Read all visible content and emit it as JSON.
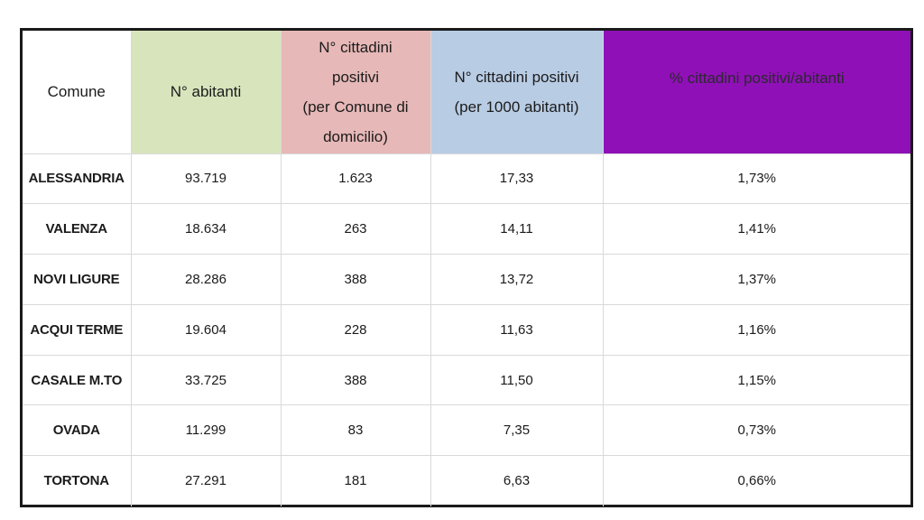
{
  "table": {
    "headers": {
      "comune": "Comune",
      "abitanti": "N° abitanti",
      "positivi": [
        "N° cittadini",
        "positivi",
        "(per Comune di",
        "domicilio)"
      ],
      "per1000": [
        "N° cittadini positivi",
        "(per 1000 abitanti)"
      ],
      "perc": "% cittadini positivi/abitanti"
    },
    "header_colors": {
      "abitanti": "#d8e4bc",
      "positivi": "#e6b8b7",
      "per1000": "#b8cce4",
      "perc": "#9010b8"
    },
    "rows": [
      {
        "comune": "ALESSANDRIA",
        "abitanti": "93.719",
        "positivi": "1.623",
        "per1000": "17,33",
        "perc": "1,73%"
      },
      {
        "comune": "VALENZA",
        "abitanti": "18.634",
        "positivi": "263",
        "per1000": "14,11",
        "perc": "1,41%"
      },
      {
        "comune": "NOVI LIGURE",
        "abitanti": "28.286",
        "positivi": "388",
        "per1000": "13,72",
        "perc": "1,37%"
      },
      {
        "comune": "ACQUI TERME",
        "abitanti": "19.604",
        "positivi": "228",
        "per1000": "11,63",
        "perc": "1,16%"
      },
      {
        "comune": "CASALE M.TO",
        "abitanti": "33.725",
        "positivi": "388",
        "per1000": "11,50",
        "perc": "1,15%"
      },
      {
        "comune": "OVADA",
        "abitanti": "11.299",
        "positivi": "83",
        "per1000": "7,35",
        "perc": "0,73%"
      },
      {
        "comune": "TORTONA",
        "abitanti": "27.291",
        "positivi": "181",
        "per1000": "6,63",
        "perc": "0,66%"
      }
    ]
  }
}
